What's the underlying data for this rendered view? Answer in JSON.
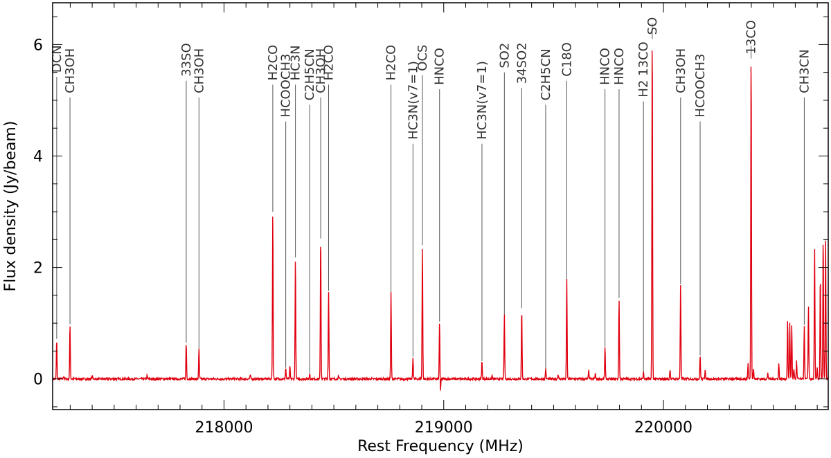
{
  "chart_data": {
    "type": "line",
    "xlabel": "Rest Frequency (MHz)",
    "ylabel": "Flux density (Jy/beam)",
    "xlim": [
      217220,
      220750
    ],
    "ylim": [
      -0.55,
      6.75
    ],
    "xticks": [
      218000,
      219000,
      220000
    ],
    "yticks": [
      0,
      2,
      4,
      6
    ],
    "line_color": "#e0000f",
    "marker_color": "#555555",
    "lines": [
      {
        "label": "DCN",
        "freq": 217238.5,
        "peak": 0.72,
        "marker_top": 5.42
      },
      {
        "label": "CH3OH",
        "freq": 217299,
        "peak": 0.98,
        "marker_top": 5.05
      },
      {
        "label": "33SO",
        "freq": 217828,
        "peak": 0.65,
        "marker_top": 5.35
      },
      {
        "label": "CH3OH",
        "freq": 217886,
        "peak": 0.55,
        "marker_top": 5.05
      },
      {
        "label": "H2CO",
        "freq": 218222,
        "peak": 3.0,
        "marker_top": 5.28
      },
      {
        "label": "HCOOCH3",
        "freq": 218281,
        "peak": 0.2,
        "marker_top": 4.62
      },
      {
        "label": "HC3N",
        "freq": 218325,
        "peak": 2.18,
        "marker_top": 5.28
      },
      {
        "label": "C2H5CN",
        "freq": 218390,
        "peak": 0.1,
        "marker_top": 4.92
      },
      {
        "label": "CH3OH",
        "freq": 218440,
        "peak": 2.52,
        "marker_top": 5.05
      },
      {
        "label": "H2CO",
        "freq": 218476,
        "peak": 1.58,
        "marker_top": 5.28
      },
      {
        "label": "H2CO",
        "freq": 218760,
        "peak": 1.55,
        "marker_top": 5.28
      },
      {
        "label": "HC3N(v7=1)",
        "freq": 218860,
        "peak": 0.4,
        "marker_top": 4.22
      },
      {
        "label": "OCS",
        "freq": 218903,
        "peak": 2.4,
        "marker_top": 5.45
      },
      {
        "label": "HNCO",
        "freq": 218981,
        "peak": 1.03,
        "marker_top": 5.2
      },
      {
        "label": "HC3N(v7=1)",
        "freq": 219174,
        "peak": 0.32,
        "marker_top": 4.22
      },
      {
        "label": "SO2",
        "freq": 219276,
        "peak": 1.15,
        "marker_top": 5.5
      },
      {
        "label": "34SO2",
        "freq": 219355,
        "peak": 1.27,
        "marker_top": 5.22
      },
      {
        "label": "C2H5CN",
        "freq": 219464,
        "peak": 0.18,
        "marker_top": 4.92
      },
      {
        "label": "C18O",
        "freq": 219560,
        "peak": 1.8,
        "marker_top": 5.35
      },
      {
        "label": "HNCO",
        "freq": 219734,
        "peak": 0.58,
        "marker_top": 5.2
      },
      {
        "label": "HNCO",
        "freq": 219798,
        "peak": 1.45,
        "marker_top": 5.2
      },
      {
        "label": "H2 13CO",
        "freq": 219909,
        "peak": 0.12,
        "marker_top": 4.98
      },
      {
        "label": "SO",
        "freq": 219949,
        "peak": 6.38,
        "marker_top": 6.1
      },
      {
        "label": "CH3OH",
        "freq": 220078,
        "peak": 1.7,
        "marker_top": 5.05
      },
      {
        "label": "HCOOCH3",
        "freq": 220167,
        "peak": 0.42,
        "marker_top": 4.62
      },
      {
        "label": "13CO",
        "freq": 220399,
        "peak": 5.98,
        "marker_top": 5.75
      },
      {
        "label": "CH3CN",
        "freq": 220641,
        "peak": 0.97,
        "marker_top": 5.05
      }
    ],
    "extra_peaks": [
      {
        "freq": 217270,
        "peak": 0.05
      },
      {
        "freq": 217400,
        "peak": 0.06
      },
      {
        "freq": 217650,
        "peak": 0.06
      },
      {
        "freq": 218120,
        "peak": 0.07
      },
      {
        "freq": 218300,
        "peak": 0.22
      },
      {
        "freq": 218440,
        "peak": 0.1
      },
      {
        "freq": 218520,
        "peak": 0.05
      },
      {
        "freq": 218985,
        "peak": -0.25
      },
      {
        "freq": 219220,
        "peak": 0.06
      },
      {
        "freq": 219520,
        "peak": 0.08
      },
      {
        "freq": 219660,
        "peak": 0.15
      },
      {
        "freq": 219690,
        "peak": 0.1
      },
      {
        "freq": 220030,
        "peak": 0.18
      },
      {
        "freq": 220190,
        "peak": 0.18
      },
      {
        "freq": 220385,
        "peak": 0.28
      },
      {
        "freq": 220410,
        "peak": 0.2
      },
      {
        "freq": 220475,
        "peak": 0.1
      },
      {
        "freq": 220525,
        "peak": 0.28
      },
      {
        "freq": 220565,
        "peak": 1.07
      },
      {
        "freq": 220575,
        "peak": 1.02
      },
      {
        "freq": 220584,
        "peak": 0.98
      },
      {
        "freq": 220594,
        "peak": 0.18
      },
      {
        "freq": 220606,
        "peak": 0.32
      },
      {
        "freq": 220660,
        "peak": 1.32
      },
      {
        "freq": 220688,
        "peak": 2.35
      },
      {
        "freq": 220700,
        "peak": 0.2
      },
      {
        "freq": 220714,
        "peak": 1.88
      },
      {
        "freq": 220727,
        "peak": 2.58
      },
      {
        "freq": 220738,
        "peak": 2.52
      }
    ]
  }
}
